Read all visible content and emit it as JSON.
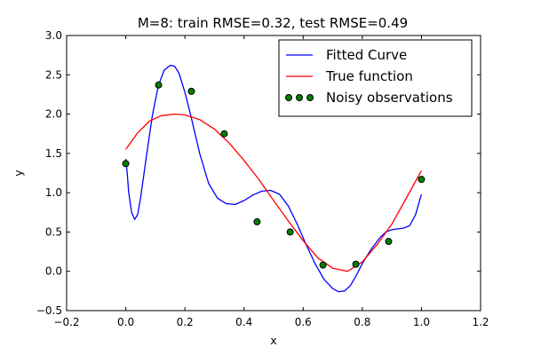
{
  "chart_data": {
    "type": "line",
    "title": "M=8: train RMSE=0.32, test RMSE=0.49",
    "xlabel": "x",
    "ylabel": "y",
    "xlim": [
      -0.2,
      1.2
    ],
    "ylim": [
      -0.5,
      3.0
    ],
    "xticks": [
      -0.2,
      0.0,
      0.2,
      0.4,
      0.6,
      0.8,
      1.0,
      1.2
    ],
    "yticks": [
      -0.5,
      0.0,
      0.5,
      1.0,
      1.5,
      2.0,
      2.5,
      3.0
    ],
    "xtick_labels": [
      "−0.2",
      "0.0",
      "0.2",
      "0.4",
      "0.6",
      "0.8",
      "1.0",
      "1.2"
    ],
    "ytick_labels": [
      "−0.5",
      "0.0",
      "0.5",
      "1.0",
      "1.5",
      "2.0",
      "2.5",
      "3.0"
    ],
    "grid": false,
    "legend_position": "top-right",
    "series": [
      {
        "name": "Fitted Curve",
        "kind": "line",
        "color": "#0000ff",
        "x": [
          0.0,
          0.005,
          0.01,
          0.02,
          0.03,
          0.04,
          0.05,
          0.07,
          0.09,
          0.11,
          0.13,
          0.15,
          0.165,
          0.18,
          0.2,
          0.22,
          0.25,
          0.28,
          0.31,
          0.34,
          0.37,
          0.4,
          0.43,
          0.46,
          0.49,
          0.52,
          0.55,
          0.58,
          0.61,
          0.64,
          0.67,
          0.7,
          0.72,
          0.74,
          0.76,
          0.78,
          0.8,
          0.83,
          0.86,
          0.88,
          0.9,
          0.92,
          0.94,
          0.96,
          0.98,
          1.0
        ],
        "y": [
          1.43,
          1.25,
          1.0,
          0.75,
          0.66,
          0.72,
          0.93,
          1.47,
          1.98,
          2.36,
          2.56,
          2.62,
          2.61,
          2.52,
          2.28,
          1.98,
          1.5,
          1.12,
          0.93,
          0.86,
          0.85,
          0.9,
          0.97,
          1.02,
          1.03,
          0.98,
          0.83,
          0.6,
          0.34,
          0.1,
          -0.1,
          -0.22,
          -0.26,
          -0.25,
          -0.18,
          -0.05,
          0.1,
          0.28,
          0.43,
          0.5,
          0.53,
          0.54,
          0.55,
          0.58,
          0.72,
          0.98
        ]
      },
      {
        "name": "True function",
        "kind": "line",
        "color": "#ff0000",
        "x": [
          0.0,
          0.04,
          0.08,
          0.12,
          0.1667,
          0.2,
          0.25,
          0.3,
          0.35,
          0.4,
          0.45,
          0.5,
          0.55,
          0.6,
          0.65,
          0.7,
          0.75,
          0.8,
          0.85,
          0.9,
          0.95,
          1.0
        ],
        "y": [
          1.55,
          1.76,
          1.91,
          1.98,
          2.0,
          1.99,
          1.93,
          1.81,
          1.63,
          1.41,
          1.17,
          0.9,
          0.64,
          0.39,
          0.17,
          0.04,
          0.0,
          0.12,
          0.34,
          0.6,
          0.94,
          1.28
        ]
      },
      {
        "name": "Noisy observations",
        "kind": "scatter",
        "color": "#008000",
        "x": [
          0.0,
          0.111,
          0.222,
          0.333,
          0.444,
          0.556,
          0.667,
          0.778,
          0.889,
          1.0
        ],
        "y": [
          1.37,
          2.37,
          2.29,
          1.75,
          0.63,
          0.5,
          0.08,
          0.09,
          0.38,
          1.17
        ]
      }
    ]
  }
}
